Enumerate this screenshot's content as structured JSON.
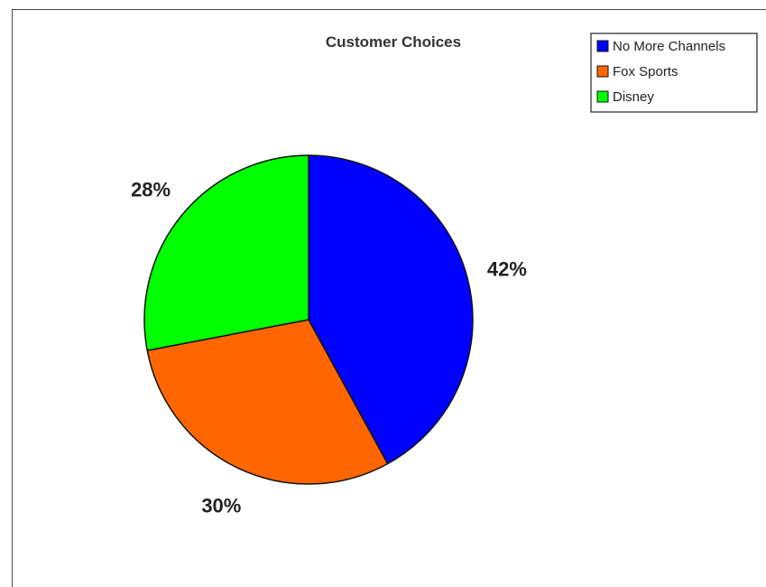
{
  "chart_data": {
    "type": "pie",
    "title": "Customer Choices",
    "slices": [
      {
        "label": "No More Channels",
        "value": 42,
        "display": "42%",
        "color": "#0000ff"
      },
      {
        "label": "Fox Sports",
        "value": 30,
        "display": "30%",
        "color": "#ff6600"
      },
      {
        "label": "Disney",
        "value": 28,
        "display": "28%",
        "color": "#00ff00"
      }
    ],
    "start_angle": "12 o'clock",
    "direction": "clockwise",
    "legend_position": "top-right"
  }
}
